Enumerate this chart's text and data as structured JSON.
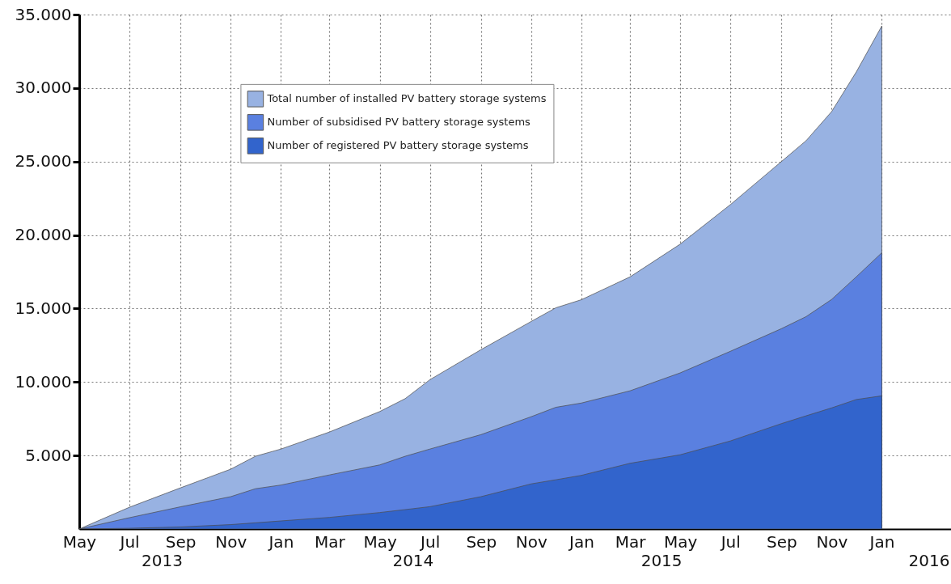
{
  "chart_data": {
    "type": "area",
    "x": [
      "2013-05",
      "2013-07",
      "2013-09",
      "2013-11",
      "2013-12",
      "2014-01",
      "2014-03",
      "2014-05",
      "2014-06",
      "2014-07",
      "2014-09",
      "2014-11",
      "2014-12",
      "2015-01",
      "2015-03",
      "2015-05",
      "2015-07",
      "2015-09",
      "2015-10",
      "2015-11",
      "2015-12",
      "2016-01"
    ],
    "series": [
      {
        "name": "Total number of installed PV battery storage systems",
        "color": "#98b2e2",
        "values": [
          0,
          1480,
          2800,
          4070,
          4950,
          5440,
          6600,
          7990,
          8870,
          10160,
          12200,
          14120,
          15050,
          15600,
          17150,
          19380,
          22070,
          25000,
          26420,
          28400,
          31100,
          34230
        ]
      },
      {
        "name": "Number of subsidised PV battery storage systems",
        "color": "#5a80e0",
        "values": [
          0,
          770,
          1510,
          2200,
          2740,
          2990,
          3680,
          4360,
          4950,
          5440,
          6420,
          7640,
          8280,
          8570,
          9400,
          10620,
          12090,
          13630,
          14450,
          15620,
          17160,
          18800
        ]
      },
      {
        "name": "Number of registered PV battery storage systems",
        "color": "#3264cc",
        "values": [
          0,
          50,
          140,
          300,
          420,
          550,
          790,
          1120,
          1320,
          1520,
          2200,
          3070,
          3350,
          3650,
          4470,
          5050,
          5990,
          7170,
          7700,
          8240,
          8810,
          9060
        ]
      }
    ],
    "xlim": [
      "2013-05",
      "2016-03-25"
    ],
    "xticks": [
      {
        "value": "2013-05",
        "label": "May"
      },
      {
        "value": "2013-07",
        "label": "Jul"
      },
      {
        "value": "2013-09",
        "label": "Sep"
      },
      {
        "value": "2013-11",
        "label": "Nov"
      },
      {
        "value": "2014-01",
        "label": "Jan"
      },
      {
        "value": "2014-03",
        "label": "Mar"
      },
      {
        "value": "2014-05",
        "label": "May"
      },
      {
        "value": "2014-07",
        "label": "Jul"
      },
      {
        "value": "2014-09",
        "label": "Sep"
      },
      {
        "value": "2014-11",
        "label": "Nov"
      },
      {
        "value": "2015-01",
        "label": "Jan"
      },
      {
        "value": "2015-03",
        "label": "Mar"
      },
      {
        "value": "2015-05",
        "label": "May"
      },
      {
        "value": "2015-07",
        "label": "Jul"
      },
      {
        "value": "2015-09",
        "label": "Sep"
      },
      {
        "value": "2015-11",
        "label": "Nov"
      },
      {
        "value": "2016-01",
        "label": "Jan"
      }
    ],
    "ylim": [
      0,
      35000
    ],
    "yticks": [
      {
        "value": 5000,
        "label": "5.000"
      },
      {
        "value": 10000,
        "label": "10.000"
      },
      {
        "value": 15000,
        "label": "15.000"
      },
      {
        "value": 20000,
        "label": "20.000"
      },
      {
        "value": 25000,
        "label": "25.000"
      },
      {
        "value": 30000,
        "label": "30.000"
      },
      {
        "value": 35000,
        "label": "35.000"
      }
    ],
    "annotations": [
      "2013",
      "2014",
      "2015",
      "2016"
    ],
    "grid": true,
    "legend": "top left"
  }
}
